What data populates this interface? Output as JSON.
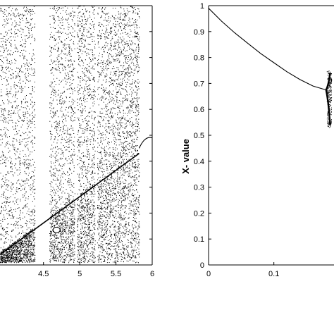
{
  "colors": {
    "ink": "#000000",
    "background": "#ffffff"
  },
  "chart_data": [
    {
      "type": "scatter",
      "title": "",
      "xlabel": "",
      "ylabel": "",
      "xlim": [
        3.9,
        6
      ],
      "ylim": [
        0,
        1
      ],
      "x_ticks": [
        "4.5",
        "5",
        "5.5",
        "6"
      ],
      "x_tick_values": [
        4.5,
        5,
        5.5,
        6
      ],
      "y_ticks": [],
      "grid": false,
      "legend": "none",
      "white_bands_x": [
        [
          4.38,
          4.58
        ],
        [
          4.93,
          4.96
        ],
        [
          5.21,
          5.24
        ]
      ],
      "lower_boundary_line": {
        "x": [
          3.9,
          5.82
        ],
        "y": [
          0.04,
          0.43
        ]
      },
      "loop_bottom_x": 4.68
    },
    {
      "type": "scatter",
      "title": "",
      "xlabel": "",
      "ylabel": "X- value",
      "xlim": [
        0,
        0.3
      ],
      "ylim": [
        0,
        1
      ],
      "x_ticks": [
        "0",
        "0.1"
      ],
      "x_tick_values": [
        0,
        0.1
      ],
      "y_ticks": [
        "0",
        "0.1",
        "0.2",
        "0.3",
        "0.4",
        "0.5",
        "0.6",
        "0.7",
        "0.8",
        "0.9",
        "1"
      ],
      "y_tick_values": [
        0,
        0.1,
        0.2,
        0.3,
        0.4,
        0.5,
        0.6,
        0.7,
        0.8,
        0.9,
        1
      ],
      "grid": false,
      "legend": "none",
      "fixed_point_curve": {
        "x": [
          0,
          0.02,
          0.04,
          0.06,
          0.08,
          0.1,
          0.12,
          0.14,
          0.16,
          0.18
        ],
        "y": [
          0.99,
          0.94,
          0.895,
          0.855,
          0.815,
          0.78,
          0.745,
          0.715,
          0.69,
          0.675
        ]
      },
      "bifurcation_x": 0.18,
      "bifurcation_y": 0.675
    }
  ]
}
